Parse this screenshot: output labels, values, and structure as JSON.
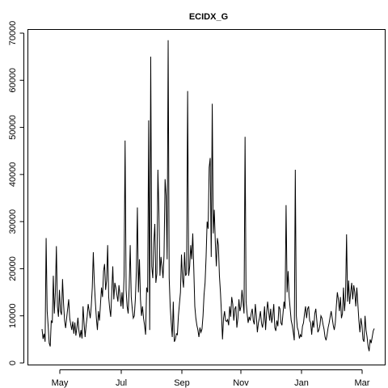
{
  "chart_data": {
    "type": "line",
    "title": "ECIDX_G",
    "xlabel": "",
    "ylabel": "",
    "grid": false,
    "x_ticks": [
      "May",
      "Jul",
      "Sep",
      "Nov",
      "Jan",
      "Mar"
    ],
    "y_ticks": [
      "0",
      "10000",
      "20000",
      "30000",
      "40000",
      "50000",
      "60000",
      "70000"
    ],
    "ylim": [
      0,
      70000
    ],
    "series": [
      {
        "values": [
          7200,
          5100,
          6200,
          4500,
          26500,
          11000,
          7800,
          4200,
          3500,
          9000,
          8500,
          18500,
          10500,
          15000,
          24800,
          12000,
          9800,
          15500,
          11000,
          10200,
          17800,
          12500,
          9000,
          7400,
          9500,
          11500,
          13500,
          9500,
          8200,
          7000,
          8800,
          6200,
          8600,
          5800,
          7500,
          9600,
          6800,
          5400,
          7000,
          5200,
          12000,
          8500,
          5500,
          8000,
          9800,
          12500,
          11000,
          9500,
          12000,
          16000,
          23500,
          17000,
          13000,
          9500,
          7000,
          11000,
          9000,
          12500,
          16000,
          14000,
          19500,
          21000,
          15500,
          17500,
          25000,
          14000,
          11500,
          9800,
          15000,
          20500,
          13500,
          17000,
          16000,
          14500,
          13000,
          16500,
          14500,
          12000,
          15000,
          11500,
          18500,
          47200,
          15500,
          12000,
          10500,
          16000,
          25000,
          14000,
          11500,
          9500,
          10000,
          13500,
          19500,
          33000,
          15000,
          22000,
          13500,
          10000,
          12000,
          9500,
          8000,
          6000,
          16000,
          15000,
          51500,
          7000,
          65000,
          20500,
          18000,
          25500,
          29500,
          17000,
          19000,
          41000,
          32000,
          18500,
          22500,
          20500,
          18000,
          23000,
          39000,
          35500,
          22000,
          68500,
          18000,
          12000,
          8500,
          5500,
          13000,
          4500,
          5000,
          6200,
          6000,
          10000,
          12500,
          15000,
          23000,
          18000,
          16000,
          23500,
          18500,
          19000,
          57700,
          18500,
          20500,
          25000,
          22000,
          27500,
          20000,
          12000,
          9500,
          8000,
          7000,
          5500,
          7500,
          6500,
          7200,
          10000,
          14500,
          17000,
          22500,
          30000,
          28500,
          41500,
          43500,
          22500,
          55000,
          27500,
          32500,
          25500,
          20500,
          26500,
          25000,
          18500,
          15000,
          10500,
          5000,
          9500,
          11000,
          9000,
          8800,
          9200,
          8000,
          12000,
          9800,
          14000,
          12500,
          9000,
          11500,
          12000,
          7500,
          9500,
          13500,
          11000,
          12000,
          15500,
          13000,
          10500,
          48000,
          13000,
          10500,
          8500,
          9800,
          9000,
          10500,
          11500,
          9000,
          8200,
          12500,
          10000,
          6500,
          8500,
          9500,
          11000,
          8500,
          7500,
          9000,
          12000,
          7000,
          10500,
          13000,
          11000,
          9000,
          11500,
          8500,
          10000,
          12500,
          7500,
          6800,
          9000,
          7800,
          12000,
          11500,
          8500,
          8000,
          10500,
          13000,
          11500,
          33500,
          15000,
          19500,
          14000,
          11500,
          9000,
          8000,
          6500,
          4800,
          41000,
          10000,
          7500,
          6800,
          5200,
          6000,
          5500,
          7800,
          8500,
          10500,
          12000,
          9500,
          11500,
          12000,
          9000,
          8500,
          6000,
          9000,
          7500,
          10500,
          11500,
          9000,
          6500,
          7000,
          8000,
          10000,
          9500,
          8200,
          7200,
          5500,
          4800,
          6000,
          7500,
          8500,
          9800,
          11000,
          9500,
          8000,
          7000,
          8500,
          12000,
          15000,
          13500,
          11000,
          14000,
          9500,
          10500,
          16000,
          11000,
          14000,
          27300,
          13000,
          17500,
          12500,
          15000,
          17000,
          13500,
          16500,
          15000,
          12000,
          16000,
          12500,
          9000,
          6500,
          9500,
          8000,
          5000,
          4500,
          10000,
          7000,
          5500,
          3500,
          2500,
          5000,
          4200,
          5500,
          6800,
          7300
        ]
      }
    ]
  }
}
